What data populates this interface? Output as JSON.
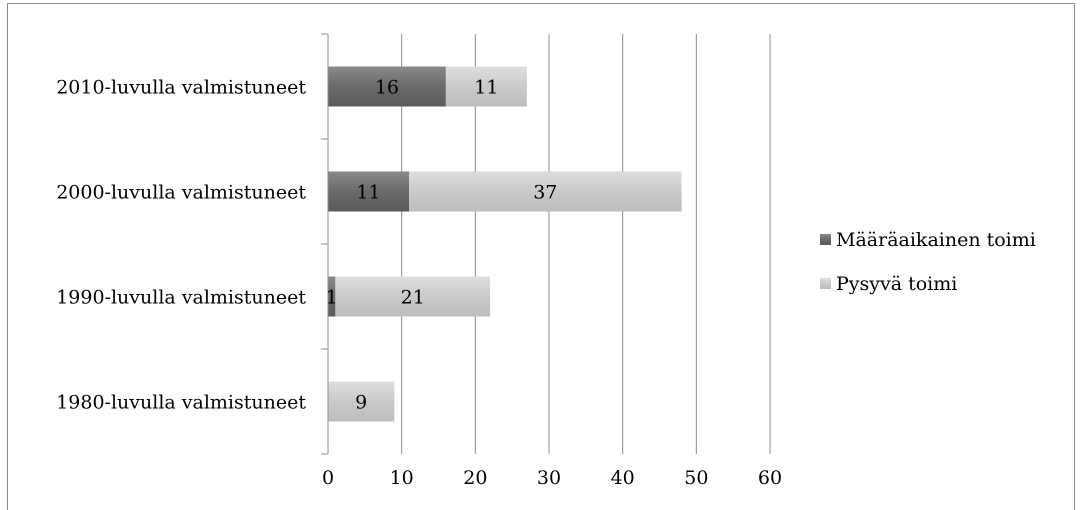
{
  "chart_data": {
    "type": "bar",
    "orientation": "horizontal",
    "stacked": true,
    "categories": [
      "2010-luvulla valmistuneet",
      "2000-luvulla valmistuneet",
      "1990-luvulla valmistuneet",
      "1980-luvulla valmistuneet"
    ],
    "series": [
      {
        "name": "Määräaikainen toimi",
        "values": [
          16,
          11,
          1,
          0
        ],
        "color": "#6e6e6e"
      },
      {
        "name": "Pysyvä toimi",
        "values": [
          11,
          37,
          21,
          9
        ],
        "color": "#c9c9c9"
      }
    ],
    "x_ticks": [
      "0",
      "10",
      "20",
      "30",
      "40",
      "50",
      "60"
    ],
    "xlim": [
      0,
      60
    ],
    "grid": true,
    "legend_position": "right",
    "title": "",
    "xlabel": "",
    "ylabel": ""
  }
}
